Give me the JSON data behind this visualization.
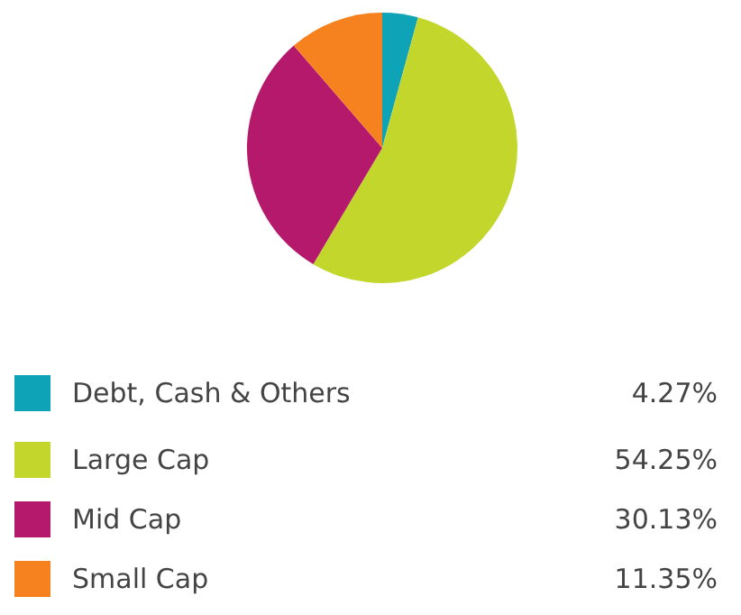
{
  "chart_data": {
    "type": "pie",
    "categories": [
      "Debt, Cash & Others",
      "Large Cap",
      "Mid Cap",
      "Small Cap"
    ],
    "values": [
      4.27,
      54.25,
      30.13,
      11.35
    ],
    "colors": [
      "#0fa3b8",
      "#c3d62c",
      "#b5196b",
      "#f5821f"
    ],
    "value_labels": [
      "4.27%",
      "54.25%",
      "30.13%",
      "11.35%"
    ],
    "legend": "bottom"
  }
}
